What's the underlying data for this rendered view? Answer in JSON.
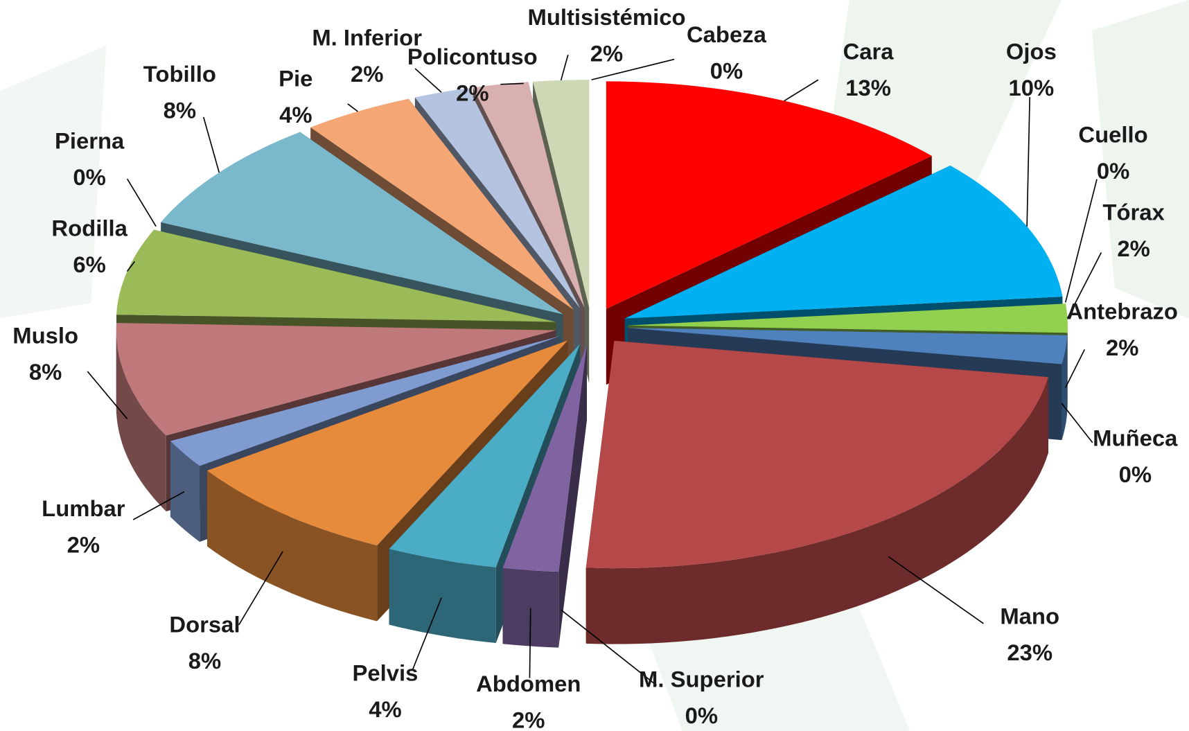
{
  "chart_data": {
    "type": "pie3d",
    "categories": [
      "Cabeza",
      "Cara",
      "Ojos",
      "Cuello",
      "Tórax",
      "Antebrazo",
      "Muñeca",
      "Mano",
      "M. Superior",
      "Abdomen",
      "Pelvis",
      "Dorsal",
      "Lumbar",
      "Muslo",
      "Rodilla",
      "Pierna",
      "Tobillo",
      "Pie",
      "M. Inferior",
      "Policontuso",
      "Multisistémico"
    ],
    "values": [
      0,
      13,
      10,
      0,
      2,
      2,
      0,
      23,
      0,
      2,
      4,
      8,
      2,
      8,
      6,
      0,
      8,
      4,
      2,
      2,
      2
    ],
    "value_labels": [
      "0%",
      "13%",
      "10%",
      "0%",
      "2%",
      "2%",
      "0%",
      "23%",
      "0%",
      "2%",
      "4%",
      "8%",
      "2%",
      "8%",
      "6%",
      "0%",
      "8%",
      "4%",
      "2%",
      "2%",
      "2%"
    ],
    "colors": [
      "#c0c0c0",
      "#ff0000",
      "#00b0f0",
      "#1f3864",
      "#92d050",
      "#4f81bd",
      "#7f7f00",
      "#b54848",
      "#5a5a5a",
      "#8064a2",
      "#4bacc6",
      "#e68a3c",
      "#7f9bd0",
      "#c0797a",
      "#9bbb59",
      "#403151",
      "#7ab8cc",
      "#f4a674",
      "#b3c3e0",
      "#d9b0b0",
      "#cdd9b4"
    ]
  }
}
